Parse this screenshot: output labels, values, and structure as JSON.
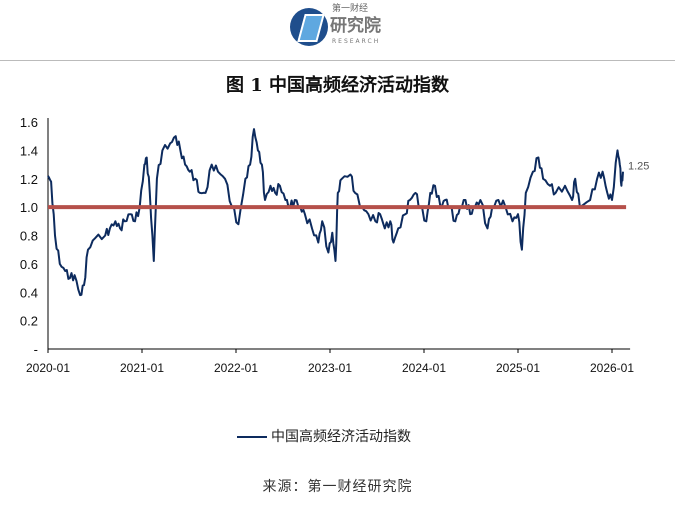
{
  "header": {
    "logo_top": "第一财经",
    "logo_main": "研究院",
    "logo_sub": "RESEARCH"
  },
  "chart_data": {
    "type": "line",
    "title": "图 1  中国高频经济活动指数",
    "xlabel": "",
    "ylabel": "",
    "x_unit": "months since 2020-01",
    "x_ticks": [
      {
        "x": 0,
        "label": "2020-01"
      },
      {
        "x": 12,
        "label": "2021-01"
      },
      {
        "x": 24,
        "label": "2022-01"
      },
      {
        "x": 36,
        "label": "2023-01"
      },
      {
        "x": 48,
        "label": "2024-01"
      },
      {
        "x": 60,
        "label": "2025-01"
      },
      {
        "x": 72,
        "label": "2026-01"
      }
    ],
    "y_ticks": [
      {
        "y": 0,
        "label": "-"
      },
      {
        "y": 0.2,
        "label": "0.2"
      },
      {
        "y": 0.4,
        "label": "0.4"
      },
      {
        "y": 0.6,
        "label": "0.6"
      },
      {
        "y": 0.8,
        "label": "0.8"
      },
      {
        "y": 1.0,
        "label": "1.0"
      },
      {
        "y": 1.2,
        "label": "1.2"
      },
      {
        "y": 1.4,
        "label": "1.4"
      },
      {
        "y": 1.6,
        "label": "1.6"
      }
    ],
    "xlim": [
      0,
      73.8
    ],
    "ylim": [
      0,
      1.6
    ],
    "grid": false,
    "reference_line": {
      "y": 1.0,
      "color": "#b5504a"
    },
    "last_label": "1.25",
    "legend": {
      "position": "bottom",
      "entries": [
        "中国高频经济活动指数"
      ]
    },
    "series": [
      {
        "name": "中国高频经济活动指数",
        "color": "#0d2b5e",
        "points": [
          [
            0,
            1.22
          ],
          [
            0.4,
            1.18
          ],
          [
            0.9,
            0.8
          ],
          [
            1.5,
            0.6
          ],
          [
            2.2,
            0.55
          ],
          [
            2.8,
            0.5
          ],
          [
            3.4,
            0.52
          ],
          [
            4.1,
            0.38
          ],
          [
            4.6,
            0.45
          ],
          [
            5.1,
            0.7
          ],
          [
            6.0,
            0.78
          ],
          [
            7.3,
            0.8
          ],
          [
            7.9,
            0.85
          ],
          [
            8.6,
            0.9
          ],
          [
            9.2,
            0.85
          ],
          [
            9.8,
            0.9
          ],
          [
            10.5,
            0.95
          ],
          [
            11.1,
            0.9
          ],
          [
            11.7,
            1.0
          ],
          [
            12.3,
            1.3
          ],
          [
            12.6,
            1.35
          ],
          [
            13.0,
            1.1
          ],
          [
            13.5,
            0.62
          ],
          [
            13.9,
            1.2
          ],
          [
            14.6,
            1.4
          ],
          [
            15.6,
            1.45
          ],
          [
            16.3,
            1.5
          ],
          [
            16.9,
            1.4
          ],
          [
            17.5,
            1.3
          ],
          [
            18.1,
            1.25
          ],
          [
            18.8,
            1.2
          ],
          [
            19.4,
            1.1
          ],
          [
            20.1,
            1.1
          ],
          [
            20.9,
            1.3
          ],
          [
            21.7,
            1.25
          ],
          [
            22.6,
            1.2
          ],
          [
            23.5,
            1.0
          ],
          [
            24.3,
            0.88
          ],
          [
            25.2,
            1.2
          ],
          [
            25.8,
            1.3
          ],
          [
            26.3,
            1.55
          ],
          [
            26.8,
            1.4
          ],
          [
            27.3,
            1.3
          ],
          [
            27.7,
            1.05
          ],
          [
            28.4,
            1.15
          ],
          [
            29.0,
            1.1
          ],
          [
            29.6,
            1.15
          ],
          [
            30.3,
            1.05
          ],
          [
            30.9,
            1.0
          ],
          [
            31.5,
            1.05
          ],
          [
            32.2,
            1.0
          ],
          [
            32.8,
            0.95
          ],
          [
            33.7,
            0.85
          ],
          [
            34.5,
            0.75
          ],
          [
            35.0,
            0.9
          ],
          [
            35.8,
            0.68
          ],
          [
            36.3,
            0.82
          ],
          [
            36.7,
            0.62
          ],
          [
            37.0,
            1.1
          ],
          [
            37.5,
            1.2
          ],
          [
            38.6,
            1.23
          ],
          [
            39.2,
            1.1
          ],
          [
            40.1,
            1.0
          ],
          [
            40.9,
            0.95
          ],
          [
            41.8,
            0.9
          ],
          [
            42.4,
            0.95
          ],
          [
            43.0,
            0.85
          ],
          [
            43.7,
            0.9
          ],
          [
            44.1,
            0.75
          ],
          [
            44.7,
            0.85
          ],
          [
            45.6,
            0.95
          ],
          [
            46.2,
            1.05
          ],
          [
            46.9,
            1.1
          ],
          [
            47.5,
            1.0
          ],
          [
            48.3,
            0.9
          ],
          [
            48.8,
            1.1
          ],
          [
            49.4,
            1.15
          ],
          [
            50.1,
            1.0
          ],
          [
            50.7,
            1.05
          ],
          [
            51.3,
            1.0
          ],
          [
            52.0,
            0.9
          ],
          [
            52.6,
            1.0
          ],
          [
            53.3,
            1.05
          ],
          [
            53.9,
            0.95
          ],
          [
            54.5,
            1.0
          ],
          [
            55.2,
            1.05
          ],
          [
            56.1,
            0.85
          ],
          [
            56.7,
            1.0
          ],
          [
            57.5,
            1.05
          ],
          [
            58.4,
            1.0
          ],
          [
            59.3,
            0.9
          ],
          [
            60.0,
            0.95
          ],
          [
            60.5,
            0.7
          ],
          [
            61.0,
            1.1
          ],
          [
            61.9,
            1.25
          ],
          [
            62.6,
            1.35
          ],
          [
            63.2,
            1.2
          ],
          [
            64.1,
            1.15
          ],
          [
            64.8,
            1.1
          ],
          [
            66.0,
            1.15
          ],
          [
            66.9,
            1.05
          ],
          [
            67.3,
            1.2
          ],
          [
            67.9,
            1.0
          ],
          [
            69.2,
            1.05
          ],
          [
            70.1,
            1.2
          ],
          [
            70.8,
            1.25
          ],
          [
            71.4,
            1.1
          ],
          [
            72.0,
            1.05
          ],
          [
            72.7,
            1.4
          ],
          [
            73.0,
            1.3
          ],
          [
            73.2,
            1.15
          ],
          [
            73.4,
            1.25
          ]
        ]
      }
    ]
  },
  "source": "来源：第一财经研究院"
}
